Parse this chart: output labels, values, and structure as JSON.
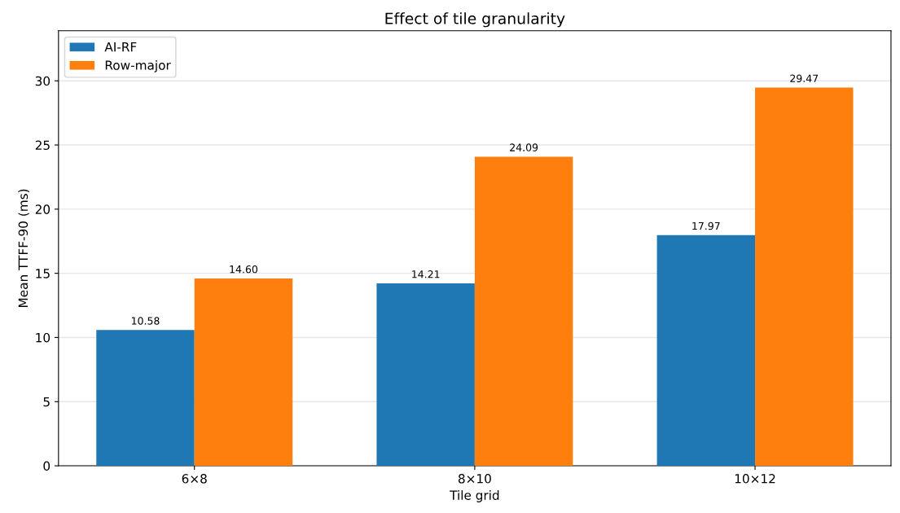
{
  "chart_data": {
    "type": "bar",
    "title": "Effect of tile granularity",
    "xlabel": "Tile grid",
    "ylabel": "Mean TTFF-90 (ms)",
    "categories": [
      "6×8",
      "8×10",
      "10×12"
    ],
    "series": [
      {
        "name": "AI-RF",
        "color": "#1f77b4",
        "values": [
          10.58,
          14.21,
          17.97
        ],
        "value_labels": [
          "10.58",
          "14.21",
          "17.97"
        ]
      },
      {
        "name": "Row-major",
        "color": "#ff7f0e",
        "values": [
          14.6,
          24.09,
          29.47
        ],
        "value_labels": [
          "14.60",
          "24.09",
          "29.47"
        ]
      }
    ],
    "ylim": [
      0,
      33.9
    ],
    "yticks": [
      0,
      5,
      10,
      15,
      20,
      25,
      30
    ],
    "grid": "y",
    "legend": "top left"
  }
}
